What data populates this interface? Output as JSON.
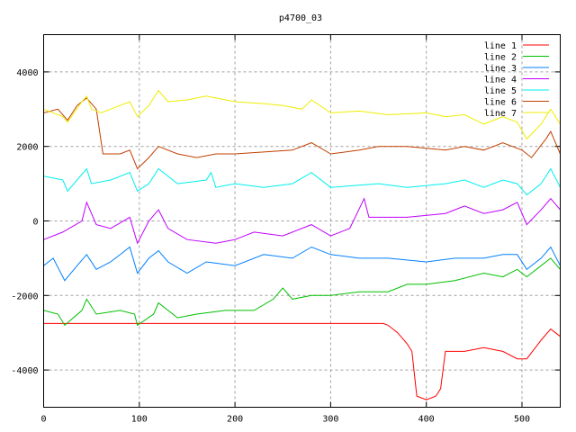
{
  "chart_data": {
    "type": "line",
    "title": "p4700_03",
    "xlabel": "",
    "ylabel": "",
    "xlim": [
      0,
      540
    ],
    "ylim": [
      -5000,
      5000
    ],
    "xticks": [
      0,
      100,
      200,
      300,
      400,
      500
    ],
    "yticks": [
      -4000,
      -2000,
      0,
      2000,
      4000
    ],
    "grid": true,
    "legend_position": "top-right",
    "series": [
      {
        "name": "line 1",
        "color": "#ff0000",
        "points": [
          [
            0,
            -2750
          ],
          [
            100,
            -2750
          ],
          [
            200,
            -2750
          ],
          [
            300,
            -2750
          ],
          [
            355,
            -2750
          ],
          [
            360,
            -2800
          ],
          [
            370,
            -3000
          ],
          [
            380,
            -3300
          ],
          [
            385,
            -3500
          ],
          [
            390,
            -4700
          ],
          [
            400,
            -4800
          ],
          [
            410,
            -4700
          ],
          [
            415,
            -4500
          ],
          [
            420,
            -3500
          ],
          [
            440,
            -3500
          ],
          [
            460,
            -3400
          ],
          [
            480,
            -3500
          ],
          [
            495,
            -3700
          ],
          [
            505,
            -3700
          ],
          [
            520,
            -3200
          ],
          [
            530,
            -2900
          ],
          [
            540,
            -3100
          ]
        ]
      },
      {
        "name": "line 2",
        "color": "#00c000",
        "points": [
          [
            0,
            -2400
          ],
          [
            15,
            -2500
          ],
          [
            22,
            -2800
          ],
          [
            40,
            -2400
          ],
          [
            45,
            -2100
          ],
          [
            55,
            -2500
          ],
          [
            80,
            -2400
          ],
          [
            95,
            -2500
          ],
          [
            98,
            -2800
          ],
          [
            115,
            -2500
          ],
          [
            120,
            -2200
          ],
          [
            140,
            -2600
          ],
          [
            160,
            -2500
          ],
          [
            190,
            -2400
          ],
          [
            220,
            -2400
          ],
          [
            240,
            -2100
          ],
          [
            250,
            -1800
          ],
          [
            260,
            -2100
          ],
          [
            280,
            -2000
          ],
          [
            300,
            -2000
          ],
          [
            330,
            -1900
          ],
          [
            360,
            -1900
          ],
          [
            380,
            -1700
          ],
          [
            400,
            -1700
          ],
          [
            430,
            -1600
          ],
          [
            460,
            -1400
          ],
          [
            480,
            -1500
          ],
          [
            495,
            -1300
          ],
          [
            505,
            -1500
          ],
          [
            520,
            -1200
          ],
          [
            530,
            -1000
          ],
          [
            540,
            -1300
          ]
        ]
      },
      {
        "name": "line 3",
        "color": "#0080ff",
        "points": [
          [
            0,
            -1200
          ],
          [
            10,
            -1000
          ],
          [
            22,
            -1600
          ],
          [
            35,
            -1200
          ],
          [
            45,
            -900
          ],
          [
            55,
            -1300
          ],
          [
            70,
            -1100
          ],
          [
            90,
            -700
          ],
          [
            98,
            -1400
          ],
          [
            110,
            -1000
          ],
          [
            120,
            -800
          ],
          [
            130,
            -1100
          ],
          [
            150,
            -1400
          ],
          [
            170,
            -1100
          ],
          [
            200,
            -1200
          ],
          [
            230,
            -900
          ],
          [
            260,
            -1000
          ],
          [
            280,
            -700
          ],
          [
            300,
            -900
          ],
          [
            330,
            -1000
          ],
          [
            360,
            -1000
          ],
          [
            400,
            -1100
          ],
          [
            430,
            -1000
          ],
          [
            460,
            -1000
          ],
          [
            480,
            -900
          ],
          [
            495,
            -900
          ],
          [
            505,
            -1300
          ],
          [
            520,
            -1000
          ],
          [
            530,
            -700
          ],
          [
            540,
            -1200
          ]
        ]
      },
      {
        "name": "line 4",
        "color": "#c000ff",
        "points": [
          [
            0,
            -500
          ],
          [
            20,
            -300
          ],
          [
            40,
            0
          ],
          [
            45,
            500
          ],
          [
            55,
            -100
          ],
          [
            70,
            -200
          ],
          [
            90,
            100
          ],
          [
            98,
            -600
          ],
          [
            110,
            0
          ],
          [
            120,
            300
          ],
          [
            130,
            -200
          ],
          [
            150,
            -500
          ],
          [
            180,
            -600
          ],
          [
            200,
            -500
          ],
          [
            220,
            -300
          ],
          [
            250,
            -400
          ],
          [
            280,
            -100
          ],
          [
            300,
            -400
          ],
          [
            320,
            -200
          ],
          [
            335,
            600
          ],
          [
            340,
            100
          ],
          [
            380,
            100
          ],
          [
            420,
            200
          ],
          [
            440,
            400
          ],
          [
            460,
            200
          ],
          [
            480,
            300
          ],
          [
            495,
            500
          ],
          [
            505,
            -100
          ],
          [
            520,
            300
          ],
          [
            530,
            600
          ],
          [
            540,
            300
          ]
        ]
      },
      {
        "name": "line 5",
        "color": "#00eeee",
        "points": [
          [
            0,
            1200
          ],
          [
            20,
            1100
          ],
          [
            25,
            800
          ],
          [
            35,
            1100
          ],
          [
            45,
            1400
          ],
          [
            50,
            1000
          ],
          [
            70,
            1100
          ],
          [
            90,
            1300
          ],
          [
            98,
            800
          ],
          [
            110,
            1000
          ],
          [
            120,
            1400
          ],
          [
            140,
            1000
          ],
          [
            170,
            1100
          ],
          [
            175,
            1300
          ],
          [
            180,
            900
          ],
          [
            200,
            1000
          ],
          [
            230,
            900
          ],
          [
            260,
            1000
          ],
          [
            280,
            1300
          ],
          [
            300,
            900
          ],
          [
            350,
            1000
          ],
          [
            380,
            900
          ],
          [
            420,
            1000
          ],
          [
            440,
            1100
          ],
          [
            460,
            900
          ],
          [
            480,
            1100
          ],
          [
            495,
            1000
          ],
          [
            505,
            700
          ],
          [
            520,
            1000
          ],
          [
            530,
            1400
          ],
          [
            540,
            900
          ]
        ]
      },
      {
        "name": "line 6",
        "color": "#c04000",
        "points": [
          [
            0,
            2900
          ],
          [
            15,
            3000
          ],
          [
            25,
            2700
          ],
          [
            35,
            3100
          ],
          [
            45,
            3300
          ],
          [
            55,
            3000
          ],
          [
            62,
            1800
          ],
          [
            80,
            1800
          ],
          [
            90,
            1900
          ],
          [
            98,
            1400
          ],
          [
            110,
            1700
          ],
          [
            120,
            2000
          ],
          [
            140,
            1800
          ],
          [
            160,
            1700
          ],
          [
            180,
            1800
          ],
          [
            200,
            1800
          ],
          [
            230,
            1850
          ],
          [
            260,
            1900
          ],
          [
            280,
            2100
          ],
          [
            300,
            1800
          ],
          [
            330,
            1900
          ],
          [
            350,
            2000
          ],
          [
            380,
            2000
          ],
          [
            420,
            1900
          ],
          [
            440,
            2000
          ],
          [
            460,
            1900
          ],
          [
            480,
            2100
          ],
          [
            500,
            1900
          ],
          [
            510,
            1700
          ],
          [
            525,
            2200
          ],
          [
            530,
            2400
          ],
          [
            540,
            1800
          ]
        ]
      },
      {
        "name": "line 7",
        "color": "#eeee00",
        "points": [
          [
            0,
            3000
          ],
          [
            20,
            2800
          ],
          [
            25,
            2650
          ],
          [
            40,
            3200
          ],
          [
            45,
            3350
          ],
          [
            50,
            3000
          ],
          [
            60,
            2900
          ],
          [
            70,
            3000
          ],
          [
            90,
            3200
          ],
          [
            98,
            2800
          ],
          [
            110,
            3100
          ],
          [
            120,
            3500
          ],
          [
            130,
            3200
          ],
          [
            150,
            3250
          ],
          [
            170,
            3350
          ],
          [
            200,
            3200
          ],
          [
            230,
            3150
          ],
          [
            250,
            3100
          ],
          [
            270,
            3000
          ],
          [
            280,
            3250
          ],
          [
            300,
            2900
          ],
          [
            330,
            2950
          ],
          [
            360,
            2850
          ],
          [
            400,
            2900
          ],
          [
            420,
            2800
          ],
          [
            440,
            2850
          ],
          [
            460,
            2600
          ],
          [
            480,
            2800
          ],
          [
            495,
            2650
          ],
          [
            505,
            2200
          ],
          [
            520,
            2600
          ],
          [
            530,
            3000
          ],
          [
            540,
            2600
          ]
        ]
      }
    ]
  }
}
